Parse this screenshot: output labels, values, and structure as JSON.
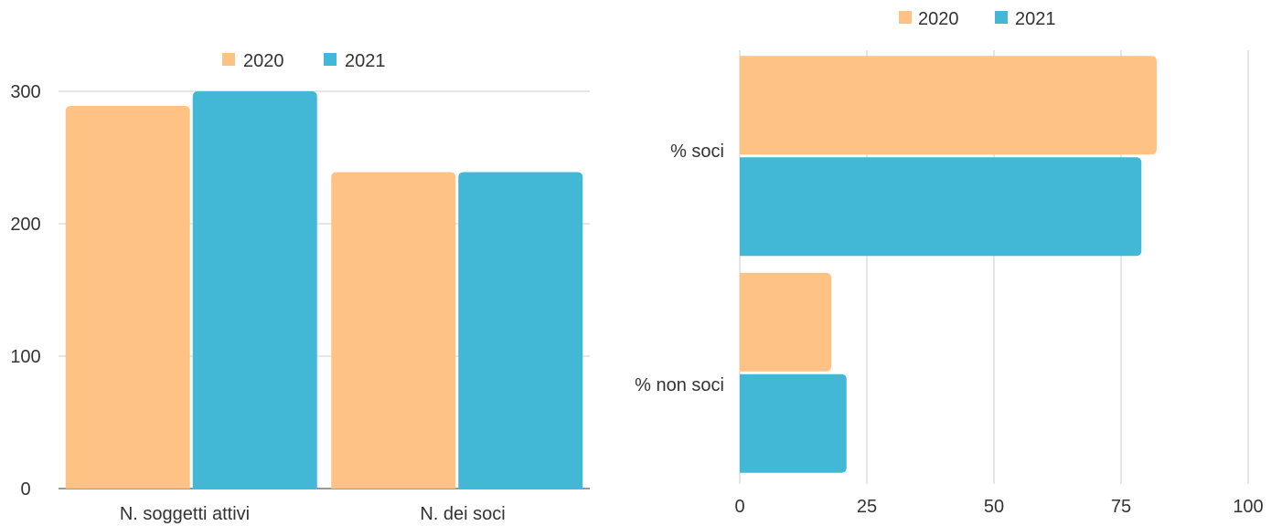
{
  "colors": {
    "series_2020": "#FFC285",
    "series_2021": "#42B7D6",
    "grid": "#CCCCCC",
    "axis": "#333333"
  },
  "chart_data": [
    {
      "type": "bar",
      "orientation": "vertical",
      "categories": [
        "N. soggetti attivi",
        "N. dei soci"
      ],
      "series": [
        {
          "name": "2020",
          "values": [
            289,
            239
          ]
        },
        {
          "name": "2021",
          "values": [
            300,
            239
          ]
        }
      ],
      "ylim": [
        0,
        300
      ],
      "yticks": [
        "0",
        "100",
        "200",
        "300"
      ],
      "grid": true,
      "legend": "top"
    },
    {
      "type": "bar",
      "orientation": "horizontal",
      "categories": [
        "% soci",
        "% non soci"
      ],
      "series": [
        {
          "name": "2020",
          "values": [
            82,
            18
          ]
        },
        {
          "name": "2021",
          "values": [
            79,
            21
          ]
        }
      ],
      "xlim": [
        0,
        100
      ],
      "xticks": [
        "0",
        "25",
        "50",
        "75",
        "100"
      ],
      "grid": true,
      "legend": "top"
    }
  ]
}
